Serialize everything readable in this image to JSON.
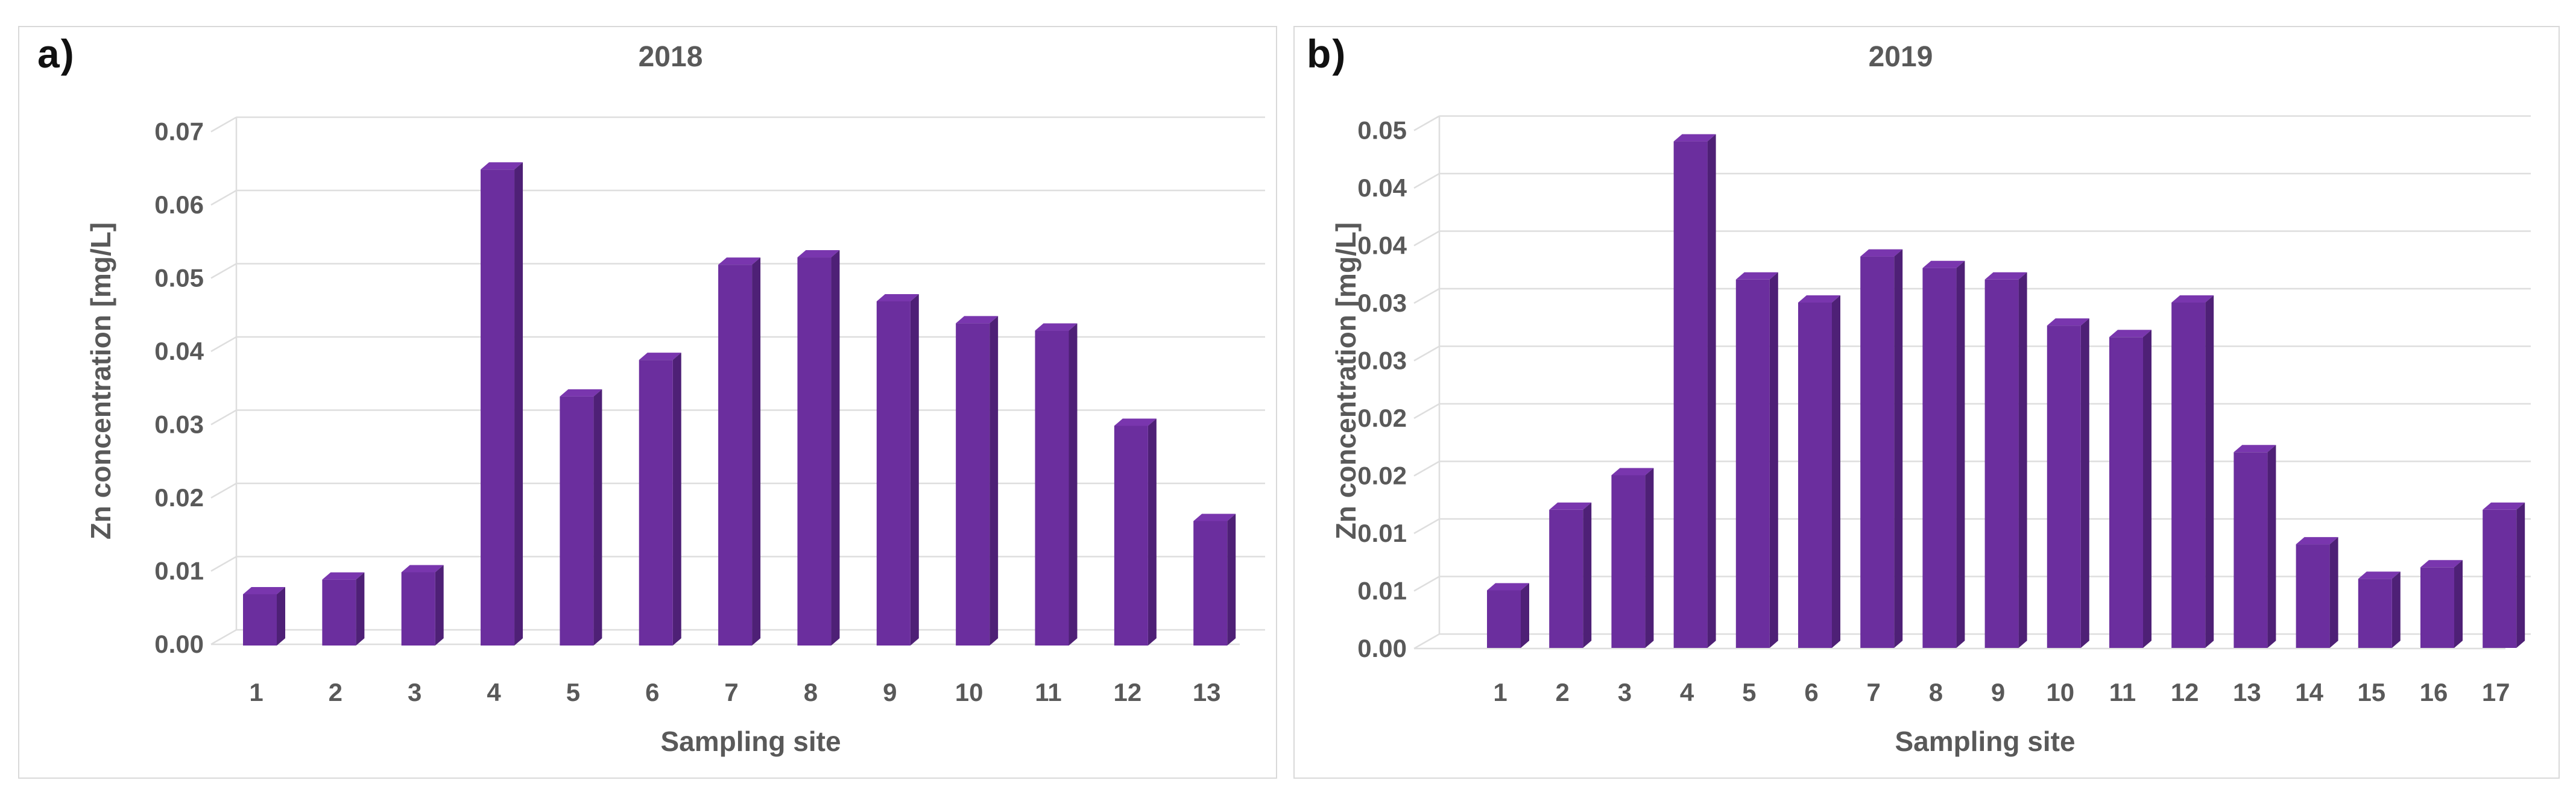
{
  "panels": [
    {
      "corner_label": "a)",
      "title": "2018",
      "y_axis_title": "Zn concentration [mg/L]",
      "x_axis_title": "Sampling site",
      "y_tick_labels": [
        "0.07",
        "0.06",
        "0.05",
        "0.04",
        "0.03",
        "0.02",
        "0.01",
        "0.00"
      ],
      "x_tick_labels": [
        "1",
        "2",
        "3",
        "4",
        "5",
        "6",
        "7",
        "8",
        "9",
        "10",
        "11",
        "12",
        "13"
      ]
    },
    {
      "corner_label": "b)",
      "title": "2019",
      "y_axis_title": "Zn concentration [mg/L]",
      "x_axis_title": "Sampling site",
      "y_tick_labels": [
        "0.05",
        "0.04",
        "0.04",
        "0.03",
        "0.03",
        "0.02",
        "0.02",
        "0.01",
        "0.01",
        "0.00"
      ],
      "x_tick_labels": [
        "1",
        "2",
        "3",
        "4",
        "5",
        "6",
        "7",
        "8",
        "9",
        "10",
        "11",
        "12",
        "13",
        "14",
        "15",
        "16",
        "17"
      ]
    }
  ],
  "chart_data": [
    {
      "type": "bar",
      "style": "3d-column",
      "title": "2018",
      "panel_label": "a)",
      "categories": [
        "1",
        "2",
        "3",
        "4",
        "5",
        "6",
        "7",
        "8",
        "9",
        "10",
        "11",
        "12",
        "13"
      ],
      "values": [
        0.007,
        0.009,
        0.01,
        0.065,
        0.034,
        0.039,
        0.052,
        0.053,
        0.047,
        0.044,
        0.043,
        0.03,
        0.017
      ],
      "xlabel": "Sampling site",
      "ylabel": "Zn concentration [mg/L]",
      "ylim": [
        0,
        0.07
      ],
      "ytick_interval": 0.01,
      "grid": true,
      "legend": false
    },
    {
      "type": "bar",
      "style": "3d-column",
      "title": "2019",
      "panel_label": "b)",
      "categories": [
        "1",
        "2",
        "3",
        "4",
        "5",
        "6",
        "7",
        "8",
        "9",
        "10",
        "11",
        "12",
        "13",
        "14",
        "15",
        "16",
        "17"
      ],
      "values": [
        0.005,
        0.012,
        0.015,
        0.044,
        0.032,
        0.03,
        0.034,
        0.033,
        0.032,
        0.028,
        0.027,
        0.03,
        0.017,
        0.009,
        0.006,
        0.007,
        0.012
      ],
      "xlabel": "Sampling site",
      "ylabel": "Zn concentration [mg/L]",
      "ylim": [
        0,
        0.045
      ],
      "ytick_interval": 0.005,
      "ytick_labels_displayed": [
        "0.05",
        "0.04",
        "0.04",
        "0.03",
        "0.03",
        "0.02",
        "0.02",
        "0.01",
        "0.01",
        "0.00"
      ],
      "grid": true,
      "legend": false
    }
  ],
  "colors": {
    "bar_front": "#6B2E9E",
    "bar_side": "#4E2076",
    "bar_top": "#7936AE",
    "gridline": "#dedede",
    "axis_text": "#595959",
    "panel_border": "#d9d9d9",
    "corner_label_text": "#111111",
    "background": "#ffffff"
  }
}
